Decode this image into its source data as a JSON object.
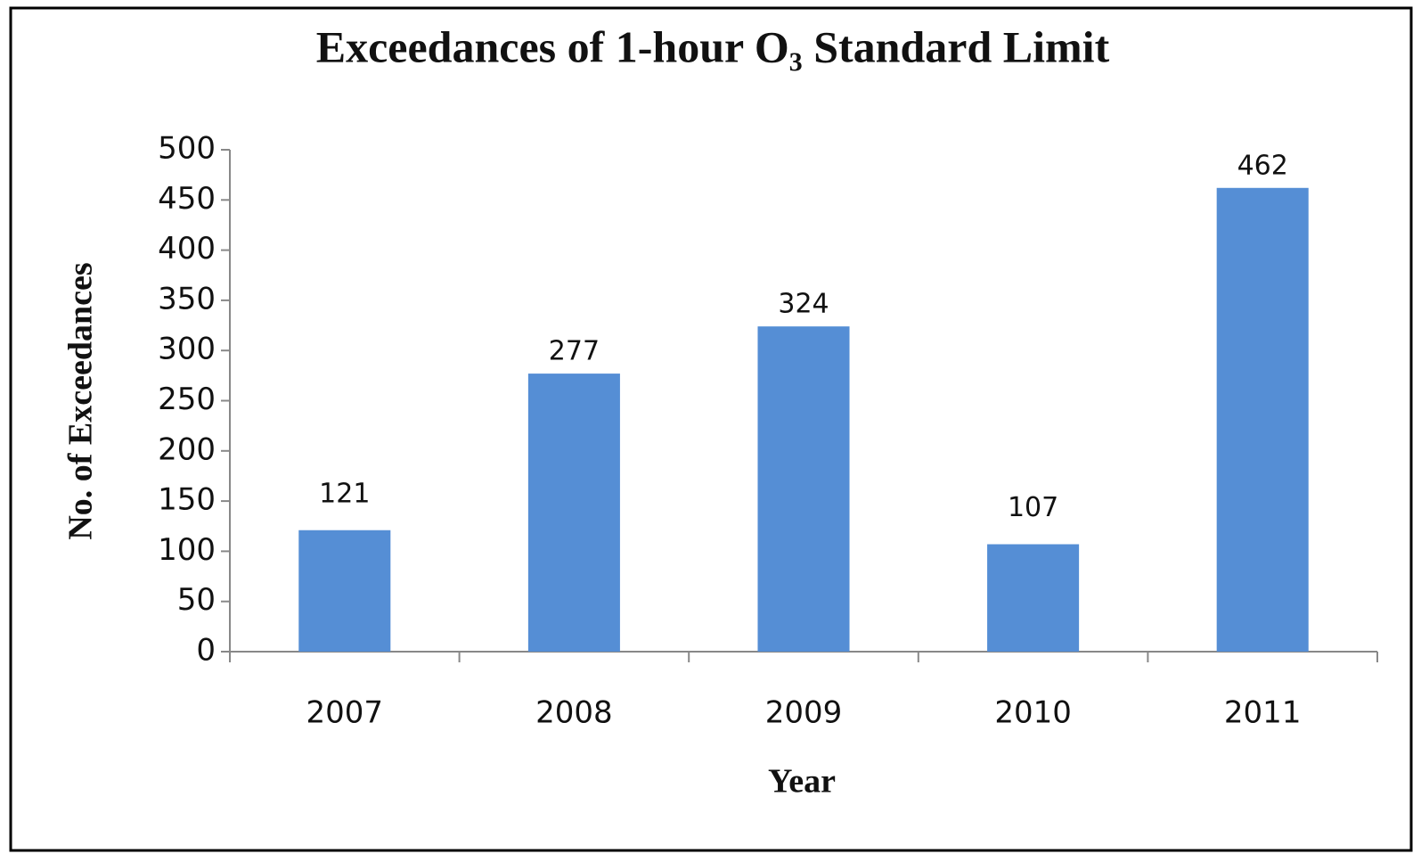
{
  "chart_data": {
    "type": "bar",
    "title": "Exceedances of 1-hour O₃ Standard Limit",
    "x_label": "Year",
    "y_label": "No. of Exceedances",
    "categories": [
      "2007",
      "2008",
      "2009",
      "2010",
      "2011"
    ],
    "values": [
      121,
      277,
      324,
      107,
      462
    ],
    "color": "#558ed5",
    "ylim": [
      0,
      500
    ],
    "yticks": [
      0,
      50,
      100,
      150,
      200,
      250,
      300,
      350,
      400,
      450,
      500
    ],
    "grid": false
  }
}
